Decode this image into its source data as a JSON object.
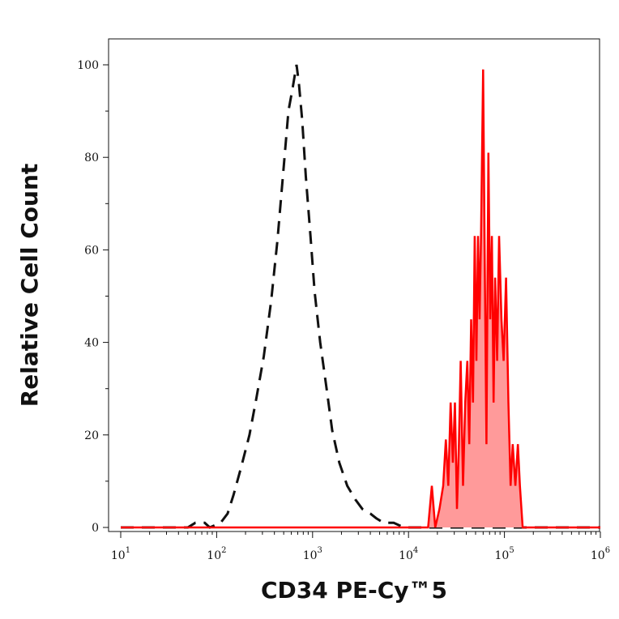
{
  "chart_data": {
    "type": "area",
    "xlabel": "CD34 PE-Cy™5",
    "ylabel": "Relative Cell Count",
    "x_scale": "log",
    "xlim": [
      10,
      1000000
    ],
    "ylim": [
      0,
      100
    ],
    "x_ticks": [
      {
        "base": "10",
        "exp": "1",
        "value": 10
      },
      {
        "base": "10",
        "exp": "2",
        "value": 100
      },
      {
        "base": "10",
        "exp": "3",
        "value": 1000
      },
      {
        "base": "10",
        "exp": "4",
        "value": 10000
      },
      {
        "base": "10",
        "exp": "5",
        "value": 100000
      },
      {
        "base": "10",
        "exp": "6",
        "value": 1000000
      }
    ],
    "y_ticks": [
      "0",
      "20",
      "40",
      "60",
      "80",
      "100"
    ],
    "series": [
      {
        "style": "dashed",
        "color": "#111111",
        "points": [
          [
            10,
            0
          ],
          [
            50,
            0
          ],
          [
            60,
            1
          ],
          [
            75,
            1
          ],
          [
            85,
            0
          ],
          [
            110,
            1
          ],
          [
            130,
            3
          ],
          [
            150,
            7
          ],
          [
            180,
            13
          ],
          [
            220,
            20
          ],
          [
            260,
            28
          ],
          [
            310,
            37
          ],
          [
            370,
            49
          ],
          [
            430,
            62
          ],
          [
            500,
            78
          ],
          [
            560,
            90
          ],
          [
            620,
            95
          ],
          [
            680,
            100
          ],
          [
            720,
            96
          ],
          [
            780,
            88
          ],
          [
            850,
            76
          ],
          [
            950,
            63
          ],
          [
            1050,
            51
          ],
          [
            1200,
            40
          ],
          [
            1400,
            30
          ],
          [
            1600,
            21
          ],
          [
            1900,
            14
          ],
          [
            2300,
            9
          ],
          [
            2800,
            6
          ],
          [
            3300,
            4
          ],
          [
            4000,
            3
          ],
          [
            4600,
            2
          ],
          [
            5500,
            1
          ],
          [
            7000,
            1
          ],
          [
            9000,
            0
          ],
          [
            1000000,
            0
          ]
        ]
      },
      {
        "style": "filled",
        "color": "#ff0000",
        "fill": "#ff9a9a",
        "points": [
          [
            10,
            0
          ],
          [
            16000,
            0
          ],
          [
            17500,
            9
          ],
          [
            19000,
            0
          ],
          [
            21000,
            4
          ],
          [
            23000,
            9
          ],
          [
            24500,
            19
          ],
          [
            26000,
            9
          ],
          [
            27500,
            27
          ],
          [
            29000,
            14
          ],
          [
            30500,
            27
          ],
          [
            32000,
            4
          ],
          [
            33500,
            18
          ],
          [
            35000,
            36
          ],
          [
            37000,
            9
          ],
          [
            39000,
            27
          ],
          [
            41000,
            36
          ],
          [
            43000,
            18
          ],
          [
            45000,
            45
          ],
          [
            47000,
            27
          ],
          [
            49000,
            63
          ],
          [
            51000,
            36
          ],
          [
            53000,
            63
          ],
          [
            55000,
            45
          ],
          [
            57000,
            63
          ],
          [
            60000,
            99
          ],
          [
            62000,
            63
          ],
          [
            65000,
            18
          ],
          [
            68000,
            81
          ],
          [
            71000,
            45
          ],
          [
            74000,
            63
          ],
          [
            77000,
            27
          ],
          [
            80000,
            54
          ],
          [
            84000,
            36
          ],
          [
            88000,
            63
          ],
          [
            93000,
            45
          ],
          [
            98000,
            36
          ],
          [
            104000,
            54
          ],
          [
            110000,
            27
          ],
          [
            116000,
            9
          ],
          [
            122000,
            18
          ],
          [
            130000,
            9
          ],
          [
            138000,
            18
          ],
          [
            145000,
            9
          ],
          [
            155000,
            0
          ],
          [
            1000000,
            0
          ]
        ]
      }
    ]
  }
}
